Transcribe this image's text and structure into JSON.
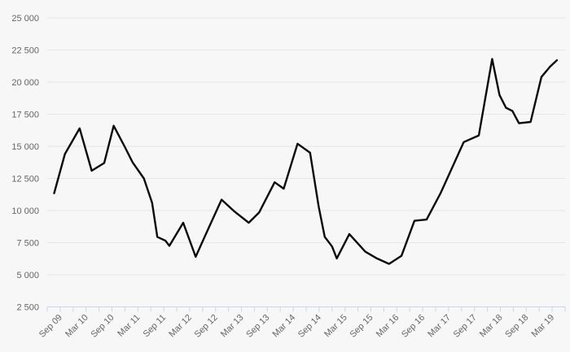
{
  "chart_data": {
    "type": "line",
    "title": "",
    "xlabel": "",
    "ylabel": "",
    "x_unit": "months since Sep 2009 (labels every 6 months, minor ticks every 3 months)",
    "x_domain": [
      -3,
      117
    ],
    "minor_tick_interval_months": 3,
    "x_label_interval_months": 6,
    "x_labels": [
      "Sep 09",
      "Mar 10",
      "Sep 10",
      "Mar 11",
      "Sep 11",
      "Mar 12",
      "Sep 12",
      "Mar 13",
      "Sep 13",
      "Mar 14",
      "Sep 14",
      "Mar 15",
      "Sep 15",
      "Mar 16",
      "Sep 16",
      "Mar 17",
      "Sep 17",
      "Mar 18",
      "Sep 18",
      "Mar 19"
    ],
    "ylim": [
      2500,
      25000
    ],
    "grid": true,
    "legend": "none",
    "y_ticks": [
      {
        "value": 2500,
        "label": "2 500"
      },
      {
        "value": 5000,
        "label": "5 000"
      },
      {
        "value": 7500,
        "label": "7 500"
      },
      {
        "value": 10000,
        "label": "10 000"
      },
      {
        "value": 12500,
        "label": "12 500"
      },
      {
        "value": 15000,
        "label": "15 000"
      },
      {
        "value": 17500,
        "label": "17 500"
      },
      {
        "value": 20000,
        "label": "20 000"
      },
      {
        "value": 22500,
        "label": "22 500"
      },
      {
        "value": 25000,
        "label": "25 000"
      }
    ],
    "series": [
      {
        "name": "value",
        "points": [
          [
            -1.4,
            11350
          ],
          [
            1.1,
            14400
          ],
          [
            4.5,
            16400
          ],
          [
            7.3,
            13100
          ],
          [
            10.2,
            13700
          ],
          [
            12.4,
            16600
          ],
          [
            14.9,
            15000
          ],
          [
            16.8,
            13750
          ],
          [
            19.4,
            12500
          ],
          [
            21.3,
            10600
          ],
          [
            22.5,
            7950
          ],
          [
            24.4,
            7650
          ],
          [
            25.3,
            7250
          ],
          [
            28.5,
            9050
          ],
          [
            31.4,
            6400
          ],
          [
            34.2,
            8500
          ],
          [
            37.4,
            10850
          ],
          [
            40.3,
            9950
          ],
          [
            43.7,
            9050
          ],
          [
            46.1,
            9850
          ],
          [
            49.7,
            12200
          ],
          [
            51.8,
            11700
          ],
          [
            55.0,
            15200
          ],
          [
            57.9,
            14500
          ],
          [
            59.9,
            10300
          ],
          [
            61.3,
            7950
          ],
          [
            63.0,
            7200
          ],
          [
            64.1,
            6270
          ],
          [
            67.0,
            8170
          ],
          [
            70.7,
            6800
          ],
          [
            73.4,
            6270
          ],
          [
            76.2,
            5850
          ],
          [
            79.1,
            6480
          ],
          [
            82.1,
            9200
          ],
          [
            84.9,
            9300
          ],
          [
            88.2,
            11400
          ],
          [
            93.5,
            15330
          ],
          [
            97.0,
            15850
          ],
          [
            100.1,
            21800
          ],
          [
            101.8,
            19000
          ],
          [
            103.3,
            18000
          ],
          [
            104.8,
            17750
          ],
          [
            106.3,
            16800
          ],
          [
            109.0,
            16900
          ],
          [
            111.5,
            20400
          ],
          [
            113.5,
            21200
          ],
          [
            115.1,
            21700
          ]
        ]
      }
    ],
    "colors": {
      "background": "#f7f7f7",
      "grid_line": "#e6e6e6",
      "axis_and_ticks": "#ccd6eb",
      "label_text": "#666666",
      "series_line": "#0a0a0a"
    },
    "series_stroke_width": 2.4
  }
}
